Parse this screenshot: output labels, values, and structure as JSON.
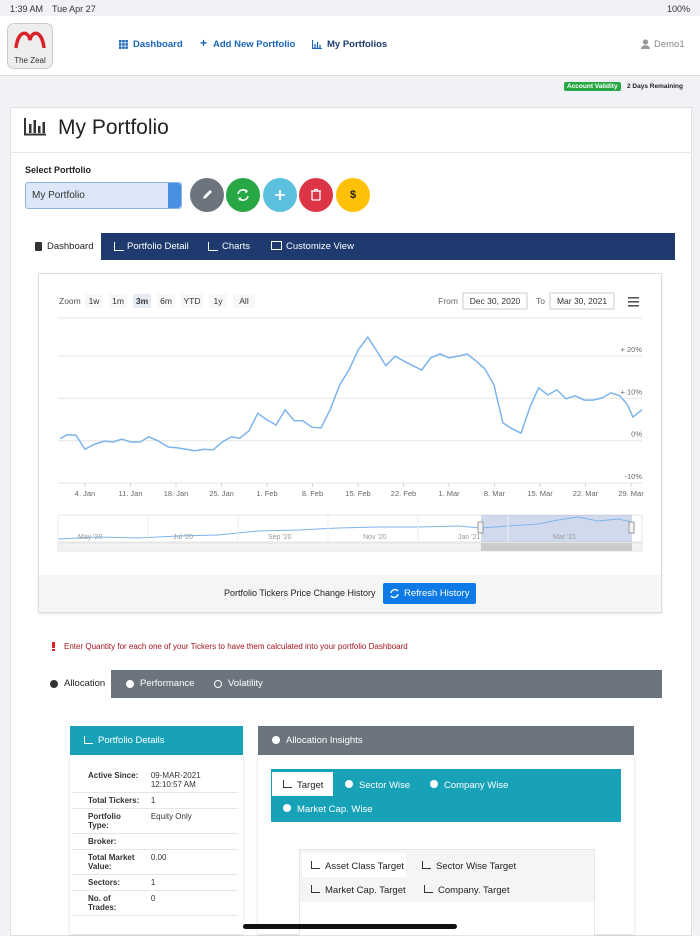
{
  "status_bar": {
    "time": "1:39 AM",
    "date": "Tue Apr 27",
    "battery": "100%"
  },
  "nav": {
    "logo": "The Zeal",
    "links": [
      "Dashboard",
      "Add New Portfolio",
      "My Portfolios"
    ],
    "user": "Demo1"
  },
  "account": {
    "badge": "Account Validity",
    "remaining": "2 Days Remaining"
  },
  "page": {
    "title": "My Portfolio",
    "select_label": "Select Portfolio",
    "selected": "My Portfolio",
    "currency_button": "$"
  },
  "tabs": [
    "Dashboard",
    "Portfolio Detail",
    "Charts",
    "Customize View"
  ],
  "chart_data": {
    "type": "line",
    "zoom_label": "Zoom",
    "zoom_buttons": [
      "1w",
      "1m",
      "3m",
      "6m",
      "YTD",
      "1y",
      "All"
    ],
    "from_label": "From",
    "from": "Dec 30, 2020",
    "to_label": "To",
    "to": "Mar 30, 2021",
    "x": [
      1.2,
      2.2,
      3.6,
      5,
      6.5,
      8,
      9.3,
      10.7,
      12,
      13.5,
      14.8,
      16.2,
      17.8,
      19.2,
      20.5,
      21.9,
      23.3,
      24.7,
      26.1,
      27.5,
      28.8,
      30.2,
      31.6,
      33,
      34.4,
      35.8,
      37.2,
      38.5,
      39.9,
      41.3,
      42.7,
      44.2,
      45.6,
      47,
      48.5,
      49.9,
      51.3,
      52.7,
      54.1,
      55.5,
      56.8,
      58.2,
      59.6,
      61,
      62.4,
      63.8,
      65.2,
      66.5,
      67.9,
      69.3,
      70.7,
      72.1,
      73.5,
      74.8,
      76.2,
      77.6,
      79,
      80.4,
      81.8,
      83.2,
      84.5,
      85.9,
      87.3,
      88.5,
      89.3,
      90.7
    ],
    "series": [
      {
        "color": "#7cb5ec",
        "values": [
          0.5,
          1.4,
          1.3,
          -2,
          -0.8,
          -0.1,
          -0.3,
          0.4,
          -0.3,
          -0.3,
          0.9,
          0,
          -1.5,
          -1.7,
          -2,
          -2.4,
          -2,
          -2.2,
          -0.3,
          0.9,
          0.6,
          2.3,
          6.5,
          4.9,
          3.7,
          7.3,
          4.7,
          4.7,
          3.2,
          3,
          7.3,
          13.2,
          16.7,
          21.4,
          24.5,
          21.2,
          17.7,
          20,
          18.8,
          17.7,
          16.7,
          19.6,
          20.5,
          19.6,
          20,
          20.5,
          18.8,
          17,
          13.2,
          4.2,
          2.8,
          1.8,
          8.2,
          12.5,
          10.8,
          12,
          9.9,
          10.6,
          9.6,
          9.6,
          10.1,
          11.3,
          10.6,
          8.4,
          5.6,
          7.3
        ]
      }
    ],
    "xlim": [
      0,
      91
    ],
    "xticks": [
      {
        "value": 5,
        "label": "4. Jan"
      },
      {
        "value": 12,
        "label": "11. Jan"
      },
      {
        "value": 19,
        "label": "18. Jan"
      },
      {
        "value": 26,
        "label": "25. Jan"
      },
      {
        "value": 33,
        "label": "1. Feb"
      },
      {
        "value": 40,
        "label": "8. Feb"
      },
      {
        "value": 47,
        "label": "15. Feb"
      },
      {
        "value": 54,
        "label": "22. Feb"
      },
      {
        "value": 61,
        "label": "1. Mar"
      },
      {
        "value": 68,
        "label": "8. Mar"
      },
      {
        "value": 75,
        "label": "15. Mar"
      },
      {
        "value": 82,
        "label": "22. Mar"
      },
      {
        "value": 89,
        "label": "29. Mar"
      }
    ],
    "ylim": [
      -10,
      29
    ],
    "yticks": [
      {
        "value": 20,
        "label": "+ 20%"
      },
      {
        "value": 10,
        "label": "+ 10%"
      },
      {
        "value": 0,
        "label": "0%"
      },
      {
        "value": -10,
        "label": "-10%"
      }
    ],
    "grid": true,
    "navigator": [
      "May '20",
      "Jul '20",
      "Sep '20",
      "Nov '20",
      "Jan '21",
      "Mar '21"
    ]
  },
  "history": {
    "label": "Portfolio Tickers Price Change History",
    "button": "Refresh History"
  },
  "warning": "Enter Quantity for each one of your Tickers to have them calculated into your portfolio Dashboard",
  "sub_tabs": [
    "Allocation",
    "Performance",
    "Volatility"
  ],
  "portfolio_details": {
    "title": "Portfolio Details",
    "rows": [
      [
        "Active Since:",
        "09-MAR-2021 12:10:57 AM"
      ],
      [
        "Total Tickers:",
        "1"
      ],
      [
        "Portfolio Type:",
        "Equity Only"
      ],
      [
        "Broker:"
      ],
      [
        "Total Market Value:",
        "0.00"
      ],
      [
        "Sectors:",
        "1"
      ],
      [
        "No. of Trades:",
        "0"
      ]
    ]
  },
  "allocation_insights": {
    "title": "Allocation Insights",
    "tabs": [
      "Target",
      "Sector Wise",
      "Company Wise",
      "Market Cap. Wise"
    ],
    "target_tabs": [
      "Asset Class Target",
      "Sector Wise Target",
      "Market Cap. Target",
      "Company. Target"
    ]
  }
}
